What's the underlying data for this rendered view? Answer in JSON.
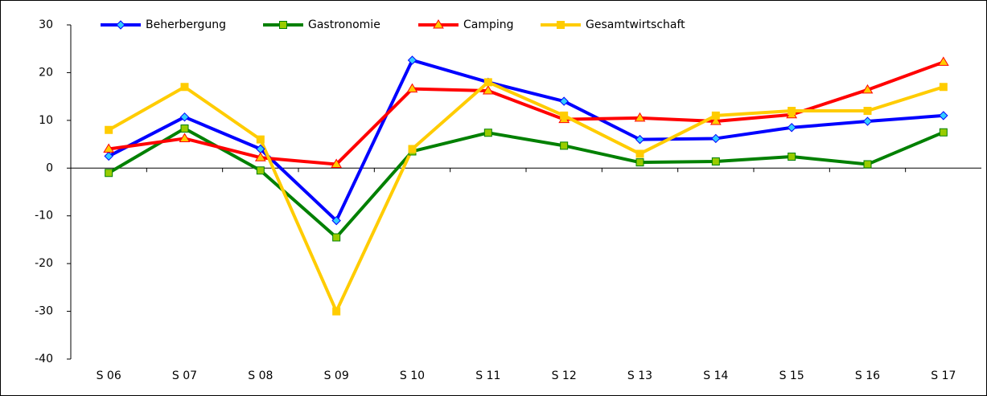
{
  "chart_data": {
    "type": "line",
    "categories": [
      "S 06",
      "S 07",
      "S 08",
      "S 09",
      "S 10",
      "S 11",
      "S 12",
      "S 13",
      "S 14",
      "S 15",
      "S 16",
      "S 17"
    ],
    "series": [
      {
        "name": "Beherbergung",
        "color": "#0000ff",
        "marker": "diamond",
        "marker_fill": "#33ccff",
        "values": [
          2.5,
          10.7,
          4,
          -11,
          22.6,
          18,
          14,
          6,
          6.2,
          8.5,
          9.8,
          11
        ]
      },
      {
        "name": "Gastronomie",
        "color": "#008000",
        "marker": "square",
        "marker_fill": "#99cc00",
        "values": [
          -1,
          8.3,
          -0.5,
          -14.5,
          3.5,
          7.4,
          4.7,
          1.2,
          1.4,
          2.4,
          0.8,
          7.5
        ]
      },
      {
        "name": "Camping",
        "color": "#ff0000",
        "marker": "triangle",
        "marker_fill": "#ffcc00",
        "values": [
          4,
          6.2,
          2.2,
          0.8,
          16.6,
          16.2,
          10.2,
          10.5,
          9.8,
          11.2,
          16.4,
          22.2
        ]
      },
      {
        "name": "Gesamtwirtschaft",
        "color": "#ffcc00",
        "marker": "square",
        "marker_fill": "#ffcc00",
        "values": [
          8,
          17,
          6,
          -30,
          4,
          18,
          11,
          3,
          11,
          12,
          12,
          17
        ]
      }
    ],
    "ylim": [
      -40,
      30
    ],
    "yticks": [
      -40,
      -30,
      -20,
      -10,
      0,
      10,
      20,
      30
    ],
    "legend": "top"
  }
}
